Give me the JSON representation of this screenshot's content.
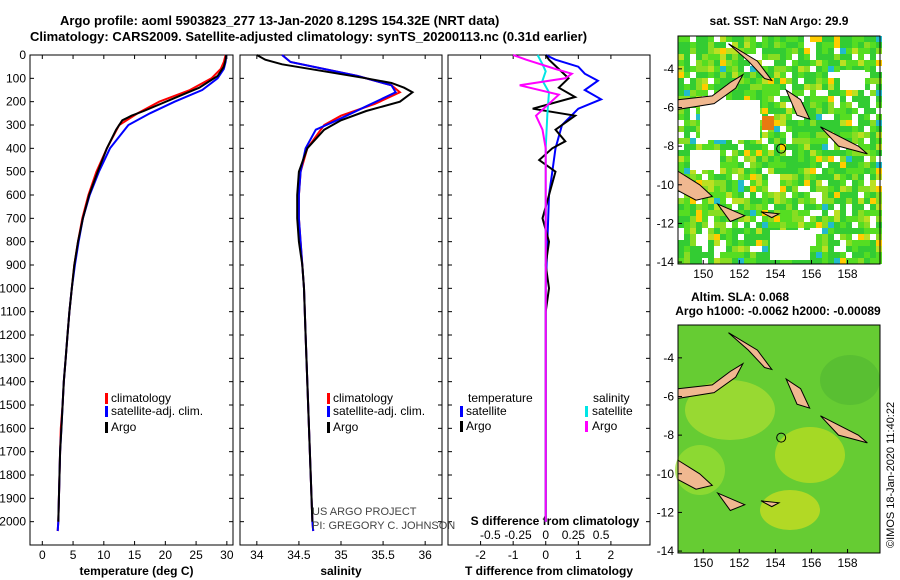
{
  "title": {
    "line1": "Argo profile: aoml 5903823_277 13-Jan-2020 8.129S 154.32E (NRT data)",
    "line2": "Climatology: CARS2009. Satellite-adjusted climatology: synTS_20200113.nc (0.31d earlier)"
  },
  "footer": {
    "project": "US ARGO PROJECT",
    "pi": "PI: GREGORY C. JOHNSON"
  },
  "copyright": "©IMOS 18-Jan-2020 11:40:22",
  "colors": {
    "climatology": "#ff0000",
    "satellite": "#0000ff",
    "argo": "#000000",
    "cyan": "#00e5e5",
    "magenta": "#ff00ff",
    "land": "#f0b890"
  },
  "legend_basic": {
    "climatology": "climatology",
    "satellite": "satellite-adj. clim.",
    "argo": "Argo"
  },
  "legend_diff": {
    "temp_head": "temperature",
    "sal_head": "salinity",
    "satellite": "satellite",
    "argo": "Argo"
  },
  "maps": {
    "sst": {
      "title": "sat. SST: NaN Argo: 29.9"
    },
    "sla": {
      "title": "Altim. SLA: 0.068",
      "subtitle": "Argo h1000: -0.0062 h2000: -0.00089"
    },
    "lon_ticks": [
      150,
      152,
      154,
      156,
      158
    ],
    "lat_ticks": [
      -4,
      -6,
      -8,
      -10,
      -12,
      -14
    ],
    "float_lon": 154.32,
    "float_lat": -8.129
  },
  "chart_data": [
    {
      "type": "line",
      "xlabel": "temperature (deg C)",
      "ylabel": "",
      "xlim": [
        -2,
        31
      ],
      "ylim": [
        2100,
        0
      ],
      "xticks": [
        0,
        5,
        10,
        15,
        20,
        25,
        30
      ],
      "yticks": [
        0,
        100,
        200,
        300,
        400,
        500,
        600,
        700,
        800,
        900,
        1000,
        1100,
        1200,
        1300,
        1400,
        1500,
        1600,
        1700,
        1800,
        1900,
        2000
      ],
      "series": [
        {
          "name": "climatology",
          "color": "#ff0000",
          "points": [
            [
              29.8,
              0
            ],
            [
              29.5,
              30
            ],
            [
              29,
              60
            ],
            [
              27.5,
              100
            ],
            [
              24,
              150
            ],
            [
              19,
              200
            ],
            [
              15.5,
              250
            ],
            [
              12.5,
              300
            ],
            [
              10.5,
              400
            ],
            [
              8.8,
              500
            ],
            [
              7.5,
              600
            ],
            [
              6.5,
              700
            ],
            [
              5.8,
              800
            ],
            [
              5.2,
              900
            ],
            [
              4.8,
              1000
            ],
            [
              4.4,
              1100
            ],
            [
              4.1,
              1200
            ],
            [
              3.8,
              1300
            ],
            [
              3.5,
              1400
            ],
            [
              3.3,
              1500
            ],
            [
              3.0,
              1600
            ],
            [
              2.9,
              1700
            ],
            [
              2.8,
              1800
            ],
            [
              2.7,
              1900
            ],
            [
              2.6,
              2000
            ],
            [
              2.5,
              2040
            ]
          ]
        },
        {
          "name": "satellite-adj. clim.",
          "color": "#0000ff",
          "points": [
            [
              29.9,
              0
            ],
            [
              29.8,
              30
            ],
            [
              29.5,
              60
            ],
            [
              28.5,
              100
            ],
            [
              26,
              150
            ],
            [
              21.5,
              200
            ],
            [
              17.5,
              250
            ],
            [
              14,
              300
            ],
            [
              11,
              400
            ],
            [
              9.2,
              500
            ],
            [
              7.7,
              600
            ],
            [
              6.6,
              700
            ],
            [
              5.9,
              800
            ],
            [
              5.3,
              900
            ],
            [
              4.8,
              1000
            ],
            [
              4.4,
              1100
            ],
            [
              4.1,
              1200
            ],
            [
              3.8,
              1300
            ],
            [
              3.5,
              1400
            ],
            [
              3.3,
              1500
            ],
            [
              3.1,
              1600
            ],
            [
              2.9,
              1700
            ],
            [
              2.8,
              1800
            ],
            [
              2.7,
              1900
            ],
            [
              2.6,
              2000
            ],
            [
              2.5,
              2040
            ]
          ]
        },
        {
          "name": "Argo",
          "color": "#000000",
          "points": [
            [
              29.9,
              0
            ],
            [
              29.8,
              20
            ],
            [
              29.5,
              50
            ],
            [
              28.5,
              90
            ],
            [
              25.5,
              140
            ],
            [
              21,
              190
            ],
            [
              16.5,
              240
            ],
            [
              14.5,
              260
            ],
            [
              13,
              280
            ],
            [
              12,
              320
            ],
            [
              10.5,
              400
            ],
            [
              9,
              500
            ],
            [
              7.6,
              600
            ],
            [
              6.6,
              700
            ],
            [
              5.8,
              800
            ],
            [
              5.2,
              900
            ],
            [
              4.8,
              1000
            ],
            [
              4.4,
              1100
            ],
            [
              4.1,
              1200
            ],
            [
              3.8,
              1300
            ],
            [
              3.5,
              1400
            ],
            [
              3.3,
              1500
            ],
            [
              3.1,
              1600
            ],
            [
              2.9,
              1700
            ],
            [
              2.8,
              1800
            ],
            [
              2.7,
              1900
            ],
            [
              2.6,
              2000
            ]
          ]
        }
      ]
    },
    {
      "type": "line",
      "xlabel": "salinity",
      "ylabel": "",
      "xlim": [
        33.8,
        36.2
      ],
      "ylim": [
        2100,
        0
      ],
      "xticks": [
        34,
        34.5,
        35,
        35.5,
        36
      ],
      "tick_labels": [
        "34",
        "34.5",
        "35",
        "35.5",
        "36"
      ],
      "series": [
        {
          "name": "climatology",
          "color": "#ff0000",
          "points": [
            [
              34.3,
              0
            ],
            [
              34.4,
              30
            ],
            [
              34.8,
              60
            ],
            [
              35.2,
              90
            ],
            [
              35.6,
              130
            ],
            [
              35.7,
              160
            ],
            [
              35.4,
              210
            ],
            [
              35.0,
              260
            ],
            [
              34.8,
              300
            ],
            [
              34.6,
              400
            ],
            [
              34.52,
              500
            ],
            [
              34.5,
              600
            ],
            [
              34.5,
              700
            ],
            [
              34.52,
              800
            ],
            [
              34.54,
              900
            ],
            [
              34.56,
              1000
            ],
            [
              34.58,
              1200
            ],
            [
              34.6,
              1400
            ],
            [
              34.62,
              1600
            ],
            [
              34.64,
              1800
            ],
            [
              34.66,
              2000
            ],
            [
              34.67,
              2040
            ]
          ]
        },
        {
          "name": "satellite-adj. clim.",
          "color": "#0000ff",
          "points": [
            [
              34.3,
              0
            ],
            [
              34.4,
              30
            ],
            [
              34.8,
              60
            ],
            [
              35.2,
              90
            ],
            [
              35.6,
              130
            ],
            [
              35.65,
              160
            ],
            [
              35.3,
              220
            ],
            [
              34.95,
              280
            ],
            [
              34.7,
              320
            ],
            [
              34.58,
              400
            ],
            [
              34.52,
              500
            ],
            [
              34.5,
              600
            ],
            [
              34.5,
              700
            ],
            [
              34.52,
              800
            ],
            [
              34.54,
              900
            ],
            [
              34.56,
              1000
            ],
            [
              34.58,
              1200
            ],
            [
              34.6,
              1400
            ],
            [
              34.62,
              1600
            ],
            [
              34.64,
              1800
            ],
            [
              34.66,
              2000
            ],
            [
              34.67,
              2040
            ]
          ]
        },
        {
          "name": "Argo",
          "color": "#000000",
          "points": [
            [
              34.0,
              0
            ],
            [
              34.1,
              20
            ],
            [
              34.3,
              40
            ],
            [
              34.8,
              70
            ],
            [
              35.3,
              100
            ],
            [
              35.6,
              120
            ],
            [
              35.75,
              140
            ],
            [
              35.85,
              160
            ],
            [
              35.7,
              200
            ],
            [
              35.3,
              240
            ],
            [
              35.0,
              280
            ],
            [
              34.8,
              320
            ],
            [
              34.6,
              400
            ],
            [
              34.5,
              500
            ],
            [
              34.48,
              600
            ],
            [
              34.48,
              700
            ],
            [
              34.5,
              800
            ],
            [
              34.54,
              900
            ],
            [
              34.56,
              1000
            ],
            [
              34.58,
              1200
            ],
            [
              34.6,
              1400
            ],
            [
              34.62,
              1600
            ],
            [
              34.64,
              1800
            ],
            [
              34.66,
              2000
            ]
          ]
        }
      ]
    },
    {
      "type": "line",
      "xlabel": "T difference from climatology",
      "xlabel_top": "S difference from climatology",
      "ylabel": "",
      "xlim": [
        -3,
        3.2
      ],
      "ylim": [
        2100,
        0
      ],
      "xticks": [
        -2,
        -1,
        0,
        1,
        2
      ],
      "xticks_s": [
        -0.5,
        -0.25,
        0,
        0.25,
        0.5
      ],
      "tick_labels_s": [
        "-0.5",
        "-0.25",
        "0",
        "0.25",
        "0.5"
      ],
      "series": [
        {
          "name": "temperature satellite",
          "color": "#0000ff",
          "points": [
            [
              0,
              0
            ],
            [
              0.3,
              20
            ],
            [
              1.0,
              50
            ],
            [
              1.2,
              80
            ],
            [
              1.6,
              110
            ],
            [
              1.2,
              150
            ],
            [
              1.7,
              190
            ],
            [
              1.0,
              230
            ],
            [
              0.5,
              300
            ],
            [
              0.3,
              400
            ],
            [
              0.2,
              500
            ],
            [
              0.1,
              600
            ],
            [
              0.05,
              800
            ],
            [
              0,
              1000
            ],
            [
              0,
              1500
            ],
            [
              0,
              2000
            ]
          ]
        },
        {
          "name": "temperature Argo",
          "color": "#000000",
          "points": [
            [
              0,
              0
            ],
            [
              0.1,
              20
            ],
            [
              0.4,
              60
            ],
            [
              0.7,
              100
            ],
            [
              0.4,
              140
            ],
            [
              0.9,
              180
            ],
            [
              -0.4,
              230
            ],
            [
              0.9,
              260
            ],
            [
              0.3,
              320
            ],
            [
              0.6,
              370
            ],
            [
              0.2,
              400
            ],
            [
              -0.2,
              450
            ],
            [
              0.3,
              500
            ],
            [
              0.1,
              600
            ],
            [
              -0.1,
              700
            ],
            [
              0.1,
              800
            ],
            [
              0,
              900
            ],
            [
              0.1,
              1000
            ],
            [
              0,
              1100
            ],
            [
              0,
              1500
            ],
            [
              0,
              2000
            ]
          ]
        },
        {
          "name": "salinity satellite",
          "color": "#00e5e5",
          "points": [
            [
              -0.25,
              0
            ],
            [
              -0.1,
              40
            ],
            [
              0,
              70
            ],
            [
              -0.1,
              110
            ],
            [
              0.1,
              160
            ],
            [
              0.05,
              250
            ],
            [
              0,
              400
            ],
            [
              0,
              600
            ],
            [
              0,
              1000
            ],
            [
              0,
              1500
            ],
            [
              0,
              1800
            ],
            [
              0,
              2000
            ]
          ]
        },
        {
          "name": "salinity Argo",
          "color": "#ff00ff",
          "points": [
            [
              -1.0,
              0
            ],
            [
              -0.6,
              20
            ],
            [
              0.3,
              60
            ],
            [
              0.8,
              80
            ],
            [
              0.6,
              100
            ],
            [
              -0.8,
              130
            ],
            [
              0.4,
              170
            ],
            [
              -0.3,
              260
            ],
            [
              -0.1,
              320
            ],
            [
              0,
              400
            ],
            [
              0,
              600
            ],
            [
              0,
              1000
            ],
            [
              0,
              1500
            ],
            [
              0,
              2000
            ]
          ]
        }
      ]
    }
  ]
}
